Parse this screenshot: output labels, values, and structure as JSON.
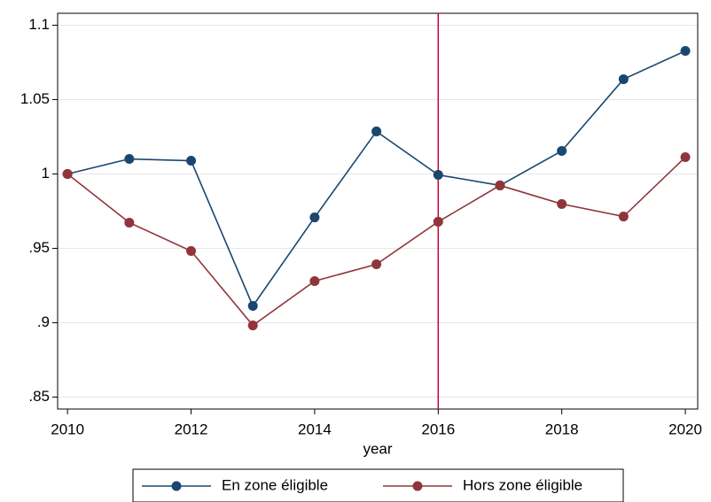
{
  "chart_data": {
    "type": "line",
    "x": [
      2010,
      2011,
      2012,
      2013,
      2014,
      2015,
      2016,
      2017,
      2018,
      2019,
      2020
    ],
    "series": [
      {
        "name": "En zone éligible",
        "color": "#1a476f",
        "values": [
          1.0,
          1.0101,
          1.0089,
          0.9113,
          0.9708,
          1.0286,
          0.9994,
          0.9923,
          1.0155,
          1.0637,
          1.0827
        ]
      },
      {
        "name": "Hors zone éligible",
        "color": "#90353b",
        "values": [
          1.0,
          0.9673,
          0.9482,
          0.8982,
          0.928,
          0.9393,
          0.9679,
          0.9923,
          0.9798,
          0.9714,
          1.0113
        ]
      }
    ],
    "xlabel": "year",
    "xlim": [
      2009.84,
      2020.2
    ],
    "xticks": [
      2010,
      2012,
      2014,
      2016,
      2018,
      2020
    ],
    "ylim": [
      0.842,
      1.108
    ],
    "yticks": [
      {
        "value": 0.85,
        "label": ".85"
      },
      {
        "value": 0.9,
        "label": ".9"
      },
      {
        "value": 0.95,
        "label": ".95"
      },
      1,
      1.05,
      1.1
    ],
    "grid": true,
    "vline": {
      "x": 2016,
      "color": "#c10534"
    },
    "legend": "bottom"
  }
}
